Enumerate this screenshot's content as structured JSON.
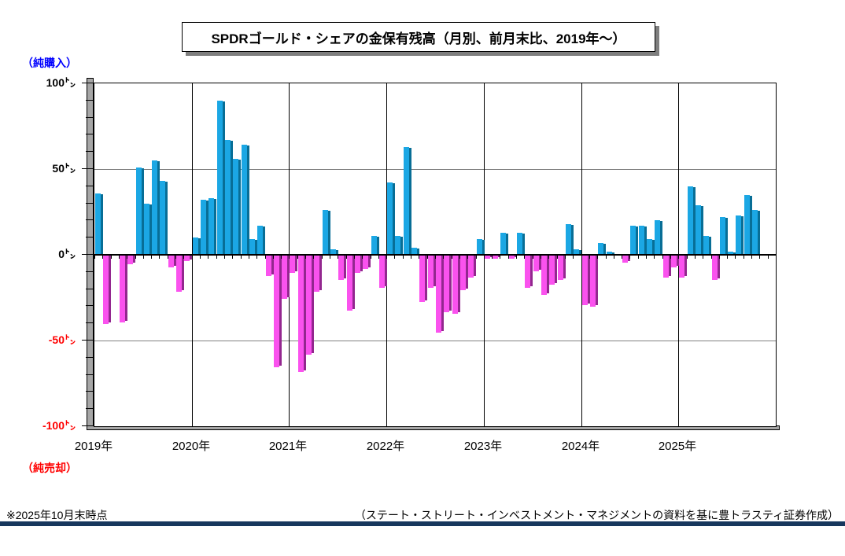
{
  "title": "SPDRゴールド・シェアの金保有残高（月別、前月末比、2019年～）",
  "axis_annotations": {
    "top_left": "（純購入）",
    "bottom_left": "（純売却）",
    "top_left_color": "#0000ff",
    "bottom_left_color": "#ff0000"
  },
  "footnotes": {
    "as_of": "※2025年10月末時点",
    "source": "（ステート・ストリート・インベストメント・マネジメントの資料を基に豊トラスティ証券作成）"
  },
  "chart_data": {
    "type": "bar",
    "title": "SPDRゴールド・シェアの金保有残高（月別、前月末比、2019年～）",
    "unit": "トン",
    "ylim": [
      -100,
      100
    ],
    "grid_major_interval": 50,
    "tick_minor_interval": 10,
    "legend": "none",
    "yticks": [
      {
        "value": 100,
        "label": "100㌧",
        "color": "#000000"
      },
      {
        "value": 50,
        "label": "50㌧",
        "color": "#000000"
      },
      {
        "value": 0,
        "label": "0㌧",
        "color": "#000000"
      },
      {
        "value": -50,
        "label": "-50㌧",
        "color": "#ff0000"
      },
      {
        "value": -100,
        "label": "-100㌧",
        "color": "#ff0000"
      }
    ],
    "colors": {
      "positive_front": "#1ba7e4",
      "positive_side": "#086e96",
      "negative_front": "#fa52ee",
      "negative_side": "#93278f",
      "wall": "#a6a6a6"
    },
    "note": "values in tonnes; 0 means no visible bar that month; 2025 through October only",
    "years": [
      {
        "label": "2019年",
        "values": [
          36,
          -40,
          0,
          -39,
          -5,
          51,
          30,
          55,
          43,
          -7,
          -21,
          -3
        ]
      },
      {
        "label": "2020年",
        "values": [
          10,
          32,
          33,
          90,
          67,
          56,
          64,
          9,
          17,
          -12,
          -65,
          -25
        ]
      },
      {
        "label": "2021年",
        "values": [
          -10,
          -68,
          -58,
          -21,
          26,
          3,
          -14,
          -32,
          -10,
          -8,
          11,
          -19
        ]
      },
      {
        "label": "2022年",
        "values": [
          42,
          11,
          63,
          4,
          -27,
          -19,
          -45,
          -33,
          -34,
          -20,
          -13,
          9
        ]
      },
      {
        "label": "2023年",
        "values": [
          -2,
          -2,
          13,
          -2,
          13,
          -19,
          -9,
          -23,
          -17,
          -14,
          18,
          3
        ]
      },
      {
        "label": "2024年",
        "values": [
          -29,
          -30,
          7,
          2,
          0,
          -4,
          17,
          17,
          9,
          20,
          -13,
          -7
        ]
      },
      {
        "label": "2025年",
        "values": [
          -13,
          40,
          29,
          11,
          -14,
          22,
          2,
          23,
          35,
          26
        ]
      }
    ]
  }
}
